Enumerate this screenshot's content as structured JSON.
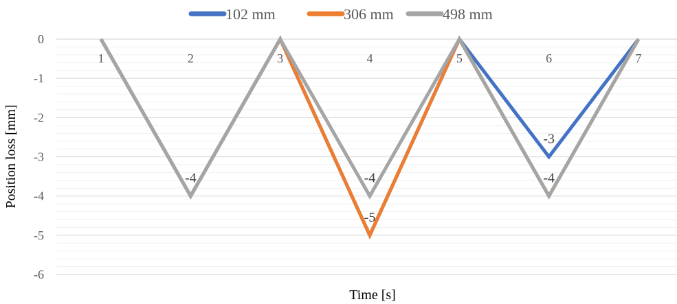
{
  "chart_data": {
    "type": "line",
    "categories": [
      "1",
      "2",
      "3",
      "4",
      "5",
      "6",
      "7"
    ],
    "series": [
      {
        "name": "102 mm",
        "color": "#4472C4",
        "values": [
          0,
          -4,
          0,
          -5,
          0,
          -3,
          0
        ]
      },
      {
        "name": "306 mm",
        "color": "#ED7D31",
        "values": [
          0,
          -4,
          0,
          -5,
          0,
          -4,
          0
        ]
      },
      {
        "name": "498 mm",
        "color": "#A5A5A5",
        "values": [
          0,
          -4,
          0,
          -4,
          0,
          -4,
          0
        ]
      }
    ],
    "data_labels": [
      {
        "category": "2",
        "value": -4,
        "text": "-4"
      },
      {
        "category": "4",
        "value": -4,
        "text": "-4"
      },
      {
        "category": "4",
        "value": -5,
        "text": "-5"
      },
      {
        "category": "6",
        "value": -3,
        "text": "-3"
      },
      {
        "category": "6",
        "value": -4,
        "text": "-4"
      }
    ],
    "y_ticks": [
      "0",
      "-1",
      "-2",
      "-3",
      "-4",
      "-5",
      "-6"
    ],
    "ylim": [
      -6,
      0
    ],
    "xlabel": "Time [s]",
    "ylabel": "Position loss [mm]",
    "legend_position": "top",
    "grid": true,
    "gridline_color": "#D9D9D9"
  }
}
